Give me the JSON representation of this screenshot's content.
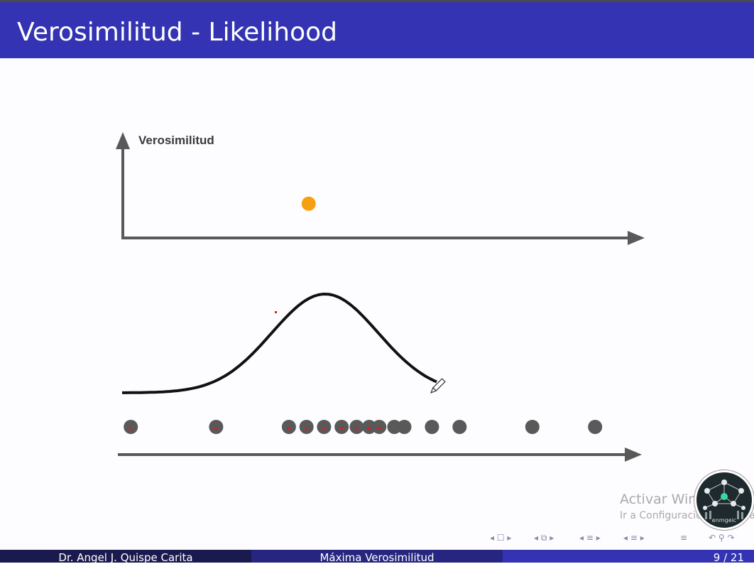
{
  "slide": {
    "title": "Verosimilitud - Likelihood",
    "y_axis_label": "Verosimilitud"
  },
  "chart_data": {
    "type": "scatter",
    "description_series": [
      {
        "name": "likelihood_point",
        "x": [
          3.9
        ],
        "y": [
          0.55
        ],
        "color": "#f5a00f"
      },
      {
        "name": "observations",
        "x": [
          0.3,
          2.0,
          3.45,
          3.8,
          4.15,
          4.5,
          4.8,
          5.05,
          5.25,
          5.55,
          5.75,
          6.3,
          6.85,
          8.3,
          9.55
        ],
        "color": "#595959"
      }
    ],
    "normal_curve": {
      "mean": 4.0,
      "sd": 1.0,
      "x_range": [
        0.0,
        6.2
      ]
    },
    "x_range": [
      0,
      10
    ],
    "y_range": [
      0,
      1
    ]
  },
  "colors": {
    "title_bar": "#3333b3",
    "axis": "#595959",
    "point_orange": "#f5a00f",
    "dots_gray": "#595959",
    "red_marks": "#e31b1b"
  },
  "watermark": {
    "line1": "Activar Win",
    "line2": "Ir a Configuración de PC pa"
  },
  "logo": {
    "text": "enmgeic"
  },
  "footer": {
    "author": "Dr. Angel J. Quispe Carita",
    "talk_title": "Máxima Verosimilitud",
    "page": "9 / 21"
  },
  "nav_icons": [
    "nav-prev-frame-icon",
    "nav-slide-icon",
    "nav-section-icon",
    "nav-subsection-icon",
    "nav-toc-icon",
    "nav-search-icon"
  ]
}
